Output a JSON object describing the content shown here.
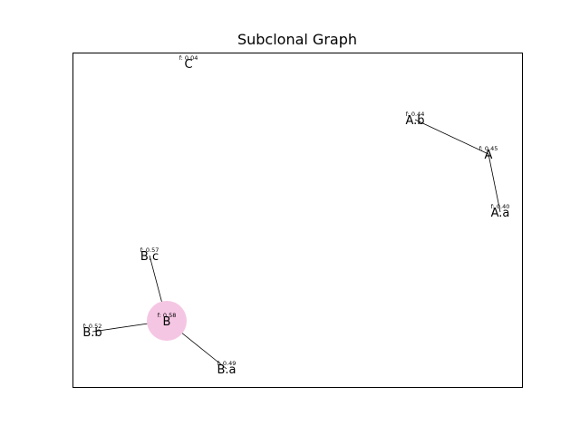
{
  "title": "Subclonal Graph",
  "freq_prefix": "f: ",
  "highlight_color": "#f5c6e3",
  "nodes": [
    {
      "id": "C",
      "label": "C",
      "freq": "0.04",
      "highlight": false
    },
    {
      "id": "A.b",
      "label": "A.b",
      "freq": "0.44",
      "highlight": false
    },
    {
      "id": "A",
      "label": "A",
      "freq": "0.45",
      "highlight": false
    },
    {
      "id": "A.a",
      "label": "A.a",
      "freq": "0.40",
      "highlight": false
    },
    {
      "id": "B.c",
      "label": "B.c",
      "freq": "0.57",
      "highlight": false
    },
    {
      "id": "B",
      "label": "B",
      "freq": "0.58",
      "highlight": true
    },
    {
      "id": "B.b",
      "label": "B.b",
      "freq": "0.52",
      "highlight": false
    },
    {
      "id": "B.a",
      "label": "B.a",
      "freq": "0.49",
      "highlight": false
    }
  ],
  "edges": [
    {
      "from": "A",
      "to": "A.b"
    },
    {
      "from": "A",
      "to": "A.a"
    },
    {
      "from": "B",
      "to": "B.c"
    },
    {
      "from": "B",
      "to": "B.b"
    },
    {
      "from": "B",
      "to": "B.a"
    }
  ]
}
